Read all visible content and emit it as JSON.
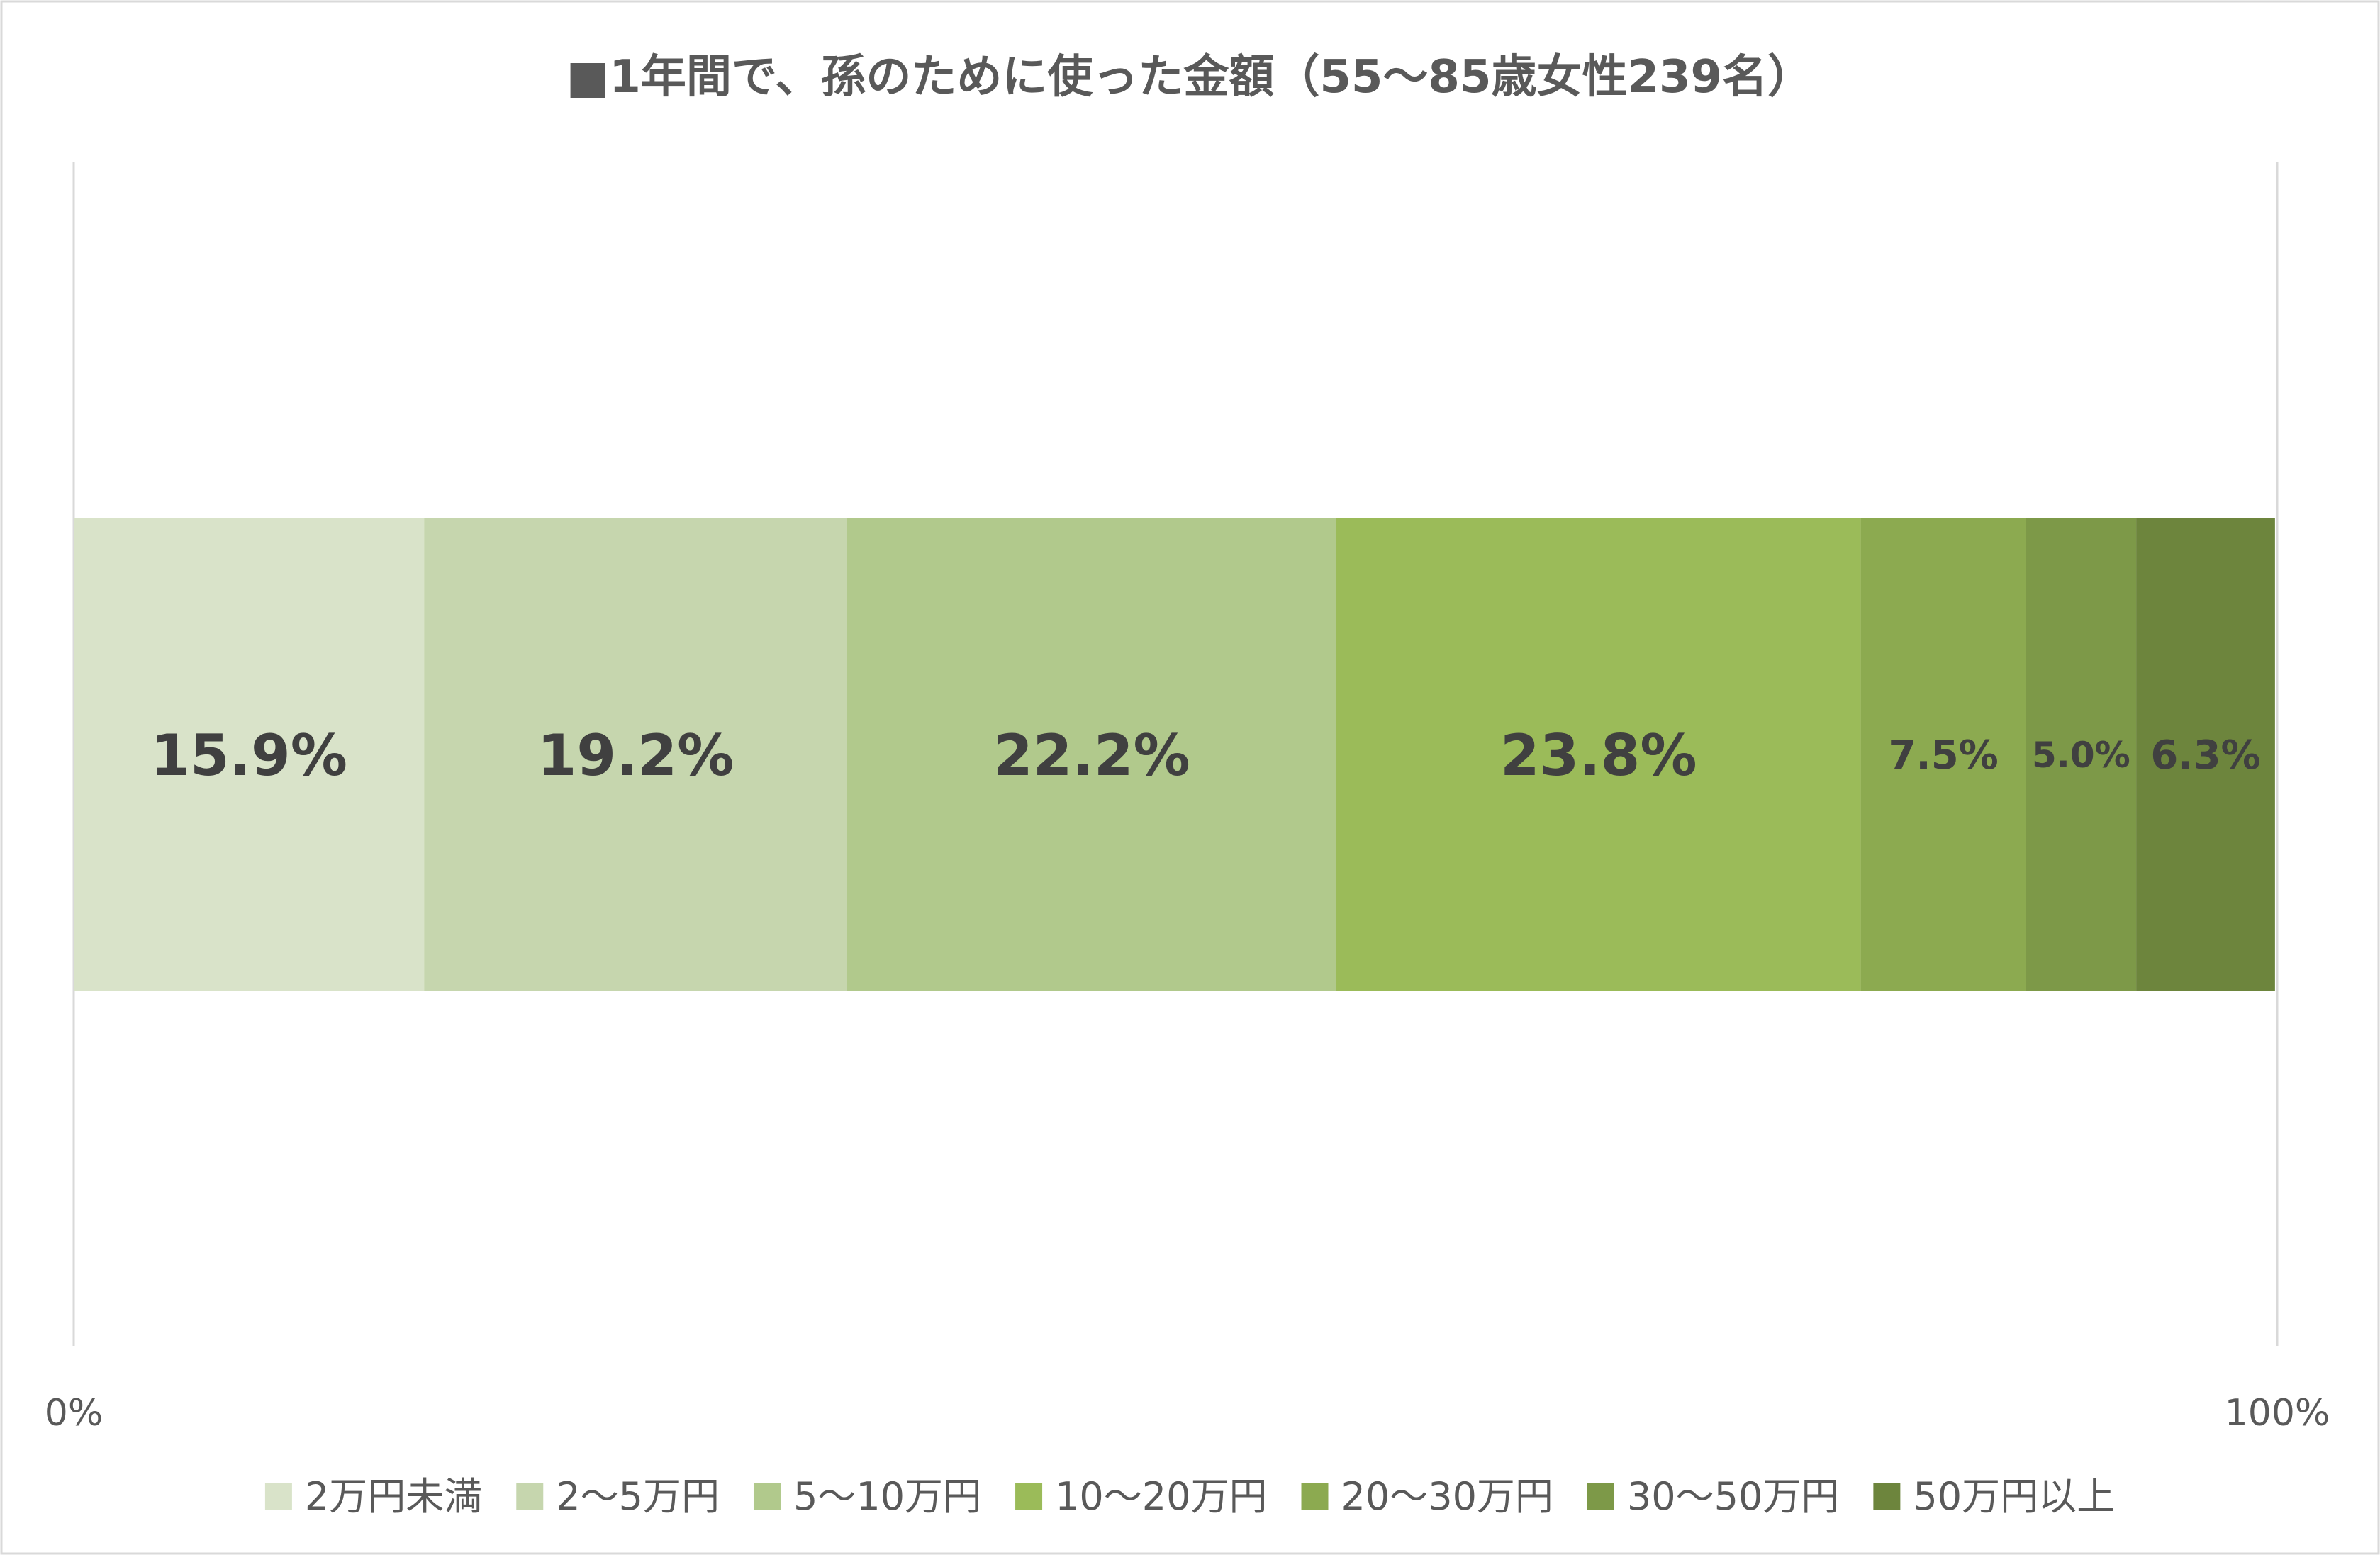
{
  "chart_data": {
    "type": "bar",
    "orientation": "horizontal-stacked-100",
    "title": "■1年間で、孫のために使った金額（55～85歳女性239名）",
    "xlabel": "",
    "ylabel": "",
    "xlim": [
      0,
      100
    ],
    "x_ticks": [
      "0%",
      "100%"
    ],
    "grid": true,
    "legend_position": "bottom",
    "series": [
      {
        "name": "2万円未満",
        "value": 15.9,
        "label": "15.9%",
        "color": "#d9e3c9"
      },
      {
        "name": "2～5万円",
        "value": 19.2,
        "label": "19.2%",
        "color": "#c6d6ae"
      },
      {
        "name": "5～10万円",
        "value": 22.2,
        "label": "22.2%",
        "color": "#b1c98c"
      },
      {
        "name": "10～20万円",
        "value": 23.8,
        "label": "23.8%",
        "color": "#9bbb59"
      },
      {
        "name": "20～30万円",
        "value": 7.5,
        "label": "7.5%",
        "color": "#8caa50"
      },
      {
        "name": "30～50万円",
        "value": 5.0,
        "label": "5.0%",
        "color": "#7d9948"
      },
      {
        "name": "50万円以上",
        "value": 6.3,
        "label": "6.3%",
        "color": "#6d853d"
      }
    ]
  }
}
